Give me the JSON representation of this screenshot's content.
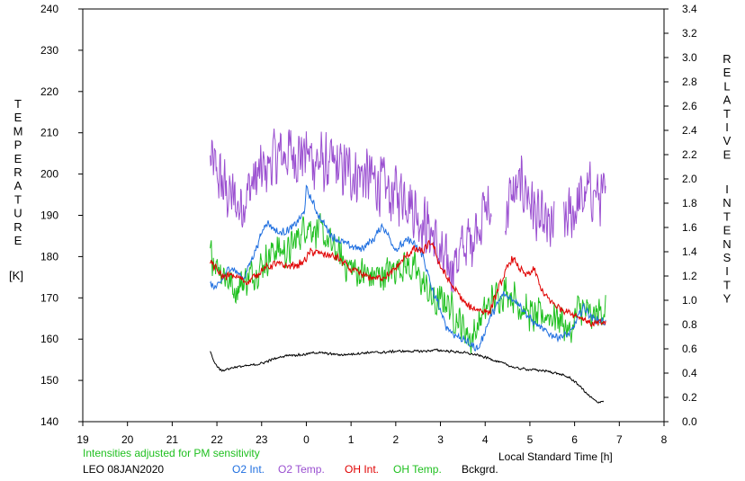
{
  "chart_data": {
    "type": "line",
    "title": "",
    "left_axis": {
      "label_letters": [
        "T",
        "E",
        "M",
        "P",
        "E",
        "R",
        "A",
        "T",
        "U",
        "R",
        "E"
      ],
      "unit": "[K]",
      "ylim": [
        140,
        240
      ],
      "ticks": [
        "140",
        "150",
        "160",
        "170",
        "180",
        "190",
        "200",
        "210",
        "220",
        "230",
        "240"
      ]
    },
    "right_axis": {
      "label_letters_1": [
        "R",
        "E",
        "L",
        "A",
        "T",
        "I",
        "V",
        "E"
      ],
      "label_letters_2": [
        "I",
        "N",
        "T",
        "E",
        "N",
        "S",
        "I",
        "T",
        "Y"
      ],
      "ylim": [
        0.0,
        3.4
      ],
      "ticks": [
        "0.0",
        "0.2",
        "0.4",
        "0.6",
        "0.8",
        "1.0",
        "1.2",
        "1.4",
        "1.6",
        "1.8",
        "2.0",
        "2.2",
        "2.4",
        "2.6",
        "2.8",
        "3.0",
        "3.2",
        "3.4"
      ]
    },
    "x_axis": {
      "label": "Local Standard Time [h]",
      "range": [
        19,
        32
      ],
      "ticks": [
        "19",
        "20",
        "21",
        "22",
        "23",
        "0",
        "1",
        "2",
        "3",
        "4",
        "5",
        "6",
        "7",
        "8"
      ]
    },
    "note": "Intensities adjusted for PM sensitivity",
    "site": "LEO 08JAN2020",
    "legend": [
      {
        "name": "O2 Int.",
        "color": "#1f6fe0"
      },
      {
        "name": "O2 Temp.",
        "color": "#9a4fd0"
      },
      {
        "name": "OH Int.",
        "color": "#e00000"
      },
      {
        "name": "OH Temp.",
        "color": "#20c020"
      },
      {
        "name": "Bckgrd.",
        "color": "#000000"
      }
    ],
    "series": [
      {
        "name": "O2 Temp.",
        "axis": "left",
        "color": "#9a4fd0",
        "noise": 9,
        "gaps": [
          [
            28.15,
            28.45
          ],
          [
            29.55,
            29.75
          ]
        ],
        "x": [
          21.85,
          22.2,
          22.5,
          22.8,
          23.0,
          23.3,
          23.6,
          24.0,
          24.4,
          24.8,
          25.2,
          25.6,
          25.9,
          26.2,
          26.5,
          26.8,
          27.1,
          27.4,
          27.7,
          28.0,
          28.3,
          28.6,
          28.9,
          29.2,
          29.5,
          29.8,
          30.1,
          30.4,
          30.7
        ],
        "y": [
          203,
          196,
          192,
          198,
          200,
          204,
          205,
          205,
          202,
          201,
          200,
          198,
          195,
          196,
          190,
          186,
          177,
          180,
          185,
          192,
          186,
          195,
          197,
          188,
          186,
          188,
          193,
          196,
          193
        ]
      },
      {
        "name": "OH Temp.",
        "axis": "left",
        "color": "#20c020",
        "noise": 5,
        "gaps": [],
        "x": [
          21.85,
          22.1,
          22.4,
          22.7,
          23.0,
          23.3,
          23.6,
          24.0,
          24.3,
          24.6,
          24.9,
          25.2,
          25.5,
          25.8,
          26.1,
          26.4,
          26.7,
          26.9,
          27.1,
          27.3,
          27.5,
          27.7,
          27.9,
          28.2,
          28.5,
          28.8,
          29.1,
          29.4,
          29.7,
          29.9,
          30.1,
          30.4,
          30.7
        ],
        "y": [
          181,
          177,
          172,
          175,
          178,
          182,
          181,
          188,
          186,
          182,
          178,
          176,
          175,
          176,
          178,
          177,
          172,
          168,
          170,
          166,
          163,
          160,
          165,
          170,
          172,
          168,
          165,
          166,
          165,
          161,
          168,
          165,
          168
        ]
      },
      {
        "name": "O2 Int.",
        "axis": "right",
        "color": "#1f6fe0",
        "noise": 0.04,
        "gaps": [],
        "x": [
          21.85,
          22.0,
          22.3,
          22.6,
          22.9,
          23.1,
          23.4,
          23.7,
          23.95,
          24.0,
          24.3,
          24.6,
          24.9,
          25.2,
          25.5,
          25.7,
          26.0,
          26.3,
          26.6,
          26.8,
          27.0,
          27.1,
          27.3,
          27.5,
          27.7,
          27.85,
          28.1,
          28.4,
          28.7,
          29.0,
          29.3,
          29.6,
          29.9,
          30.2,
          30.4,
          30.7
        ],
        "y": [
          1.13,
          1.1,
          1.28,
          1.18,
          1.45,
          1.65,
          1.55,
          1.6,
          1.72,
          1.92,
          1.68,
          1.52,
          1.46,
          1.42,
          1.5,
          1.62,
          1.42,
          1.5,
          1.38,
          1.1,
          0.92,
          0.8,
          0.72,
          0.68,
          0.63,
          0.6,
          0.85,
          1.05,
          1.0,
          0.85,
          0.75,
          0.7,
          0.72,
          0.95,
          0.85,
          0.82
        ]
      },
      {
        "name": "OH Int.",
        "axis": "right",
        "color": "#e00000",
        "noise": 0.04,
        "gaps": [],
        "x": [
          21.85,
          22.1,
          22.4,
          22.7,
          23.0,
          23.3,
          23.6,
          23.9,
          24.1,
          24.4,
          24.7,
          25.0,
          25.3,
          25.6,
          25.9,
          26.2,
          26.4,
          26.6,
          26.8,
          27.0,
          27.2,
          27.4,
          27.6,
          27.9,
          28.1,
          28.3,
          28.6,
          28.9,
          29.1,
          29.3,
          29.6,
          29.9,
          30.2,
          30.4,
          30.7
        ],
        "y": [
          1.32,
          1.2,
          1.2,
          1.15,
          1.25,
          1.3,
          1.28,
          1.3,
          1.4,
          1.38,
          1.35,
          1.25,
          1.2,
          1.18,
          1.22,
          1.35,
          1.42,
          1.4,
          1.48,
          1.28,
          1.15,
          1.05,
          0.95,
          0.92,
          0.9,
          1.1,
          1.35,
          1.2,
          1.25,
          1.05,
          0.95,
          0.9,
          0.85,
          0.8,
          0.82
        ]
      },
      {
        "name": "Bckgrd.",
        "axis": "right",
        "color": "#000000",
        "noise": 0.012,
        "gaps": [],
        "x": [
          21.85,
          21.95,
          22.1,
          22.4,
          22.7,
          23.0,
          23.3,
          23.6,
          23.9,
          24.2,
          24.5,
          24.8,
          25.1,
          25.4,
          25.7,
          26.0,
          26.3,
          26.6,
          26.9,
          27.2,
          27.5,
          27.8,
          28.1,
          28.4,
          28.7,
          29.0,
          29.3,
          29.6,
          29.9,
          30.1,
          30.3,
          30.5,
          30.65
        ],
        "y": [
          0.58,
          0.48,
          0.42,
          0.45,
          0.46,
          0.48,
          0.52,
          0.55,
          0.55,
          0.57,
          0.56,
          0.55,
          0.56,
          0.57,
          0.57,
          0.58,
          0.58,
          0.58,
          0.59,
          0.58,
          0.57,
          0.55,
          0.52,
          0.48,
          0.44,
          0.43,
          0.42,
          0.4,
          0.36,
          0.3,
          0.22,
          0.16,
          0.17
        ]
      }
    ]
  }
}
